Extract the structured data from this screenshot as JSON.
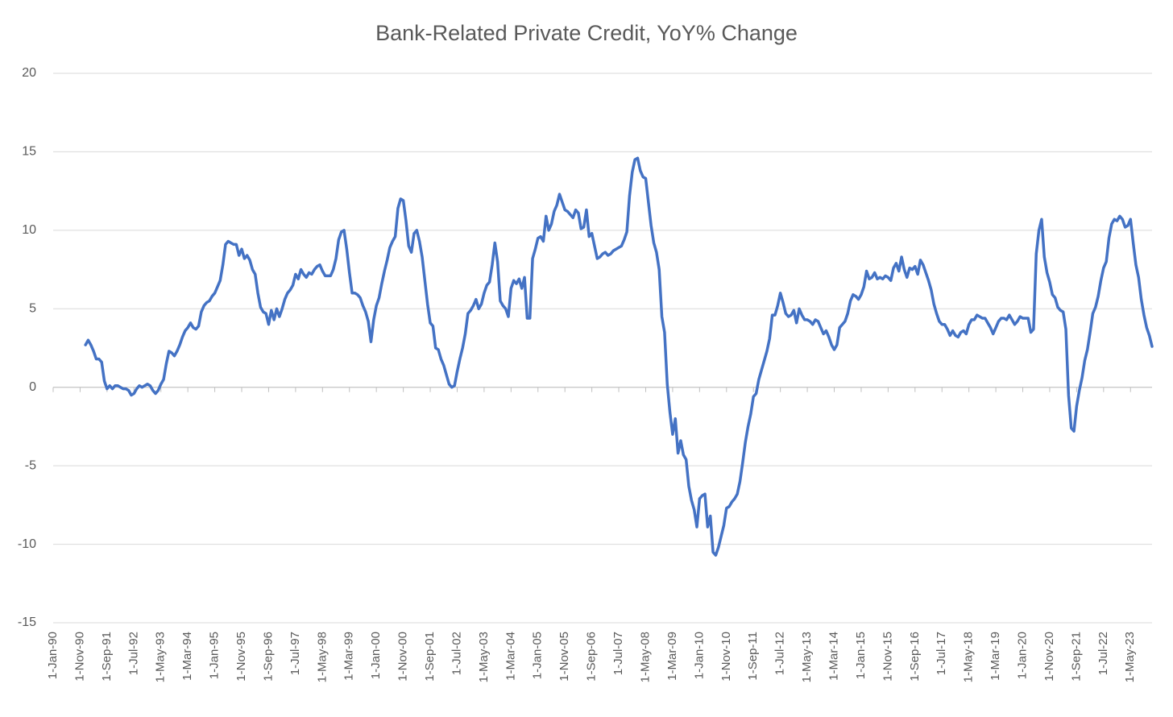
{
  "chart_data": {
    "type": "line",
    "title": "Bank-Related Private Credit, YoY% Change",
    "categories": [
      "1-Jan-90",
      null,
      null,
      null,
      null,
      null,
      null,
      null,
      null,
      null,
      "1-Nov-90",
      null,
      null,
      null,
      null,
      null,
      null,
      null,
      null,
      null,
      "1-Sep-91",
      null,
      null,
      null,
      null,
      null,
      null,
      null,
      null,
      null,
      "1-Jul-92",
      null,
      null,
      null,
      null,
      null,
      null,
      null,
      null,
      null,
      "1-May-93",
      null,
      null,
      null,
      null,
      null,
      null,
      null,
      null,
      null,
      "1-Mar-94",
      null,
      null,
      null,
      null,
      null,
      null,
      null,
      null,
      null,
      "1-Jan-95",
      null,
      null,
      null,
      null,
      null,
      null,
      null,
      null,
      null,
      "1-Nov-95",
      null,
      null,
      null,
      null,
      null,
      null,
      null,
      null,
      null,
      "1-Sep-96",
      null,
      null,
      null,
      null,
      null,
      null,
      null,
      null,
      null,
      "1-Jul-97",
      null,
      null,
      null,
      null,
      null,
      null,
      null,
      null,
      null,
      "1-May-98",
      null,
      null,
      null,
      null,
      null,
      null,
      null,
      null,
      null,
      "1-Mar-99",
      null,
      null,
      null,
      null,
      null,
      null,
      null,
      null,
      null,
      "1-Jan-00",
      null,
      null,
      null,
      null,
      null,
      null,
      null,
      null,
      null,
      "1-Nov-00",
      null,
      null,
      null,
      null,
      null,
      null,
      null,
      null,
      null,
      "1-Sep-01",
      null,
      null,
      null,
      null,
      null,
      null,
      null,
      null,
      null,
      "1-Jul-02",
      null,
      null,
      null,
      null,
      null,
      null,
      null,
      null,
      null,
      "1-May-03",
      null,
      null,
      null,
      null,
      null,
      null,
      null,
      null,
      null,
      "1-Mar-04",
      null,
      null,
      null,
      null,
      null,
      null,
      null,
      null,
      null,
      "1-Jan-05",
      null,
      null,
      null,
      null,
      null,
      null,
      null,
      null,
      null,
      "1-Nov-05",
      null,
      null,
      null,
      null,
      null,
      null,
      null,
      null,
      null,
      "1-Sep-06",
      null,
      null,
      null,
      null,
      null,
      null,
      null,
      null,
      null,
      "1-Jul-07",
      null,
      null,
      null,
      null,
      null,
      null,
      null,
      null,
      null,
      "1-May-08",
      null,
      null,
      null,
      null,
      null,
      null,
      null,
      null,
      null,
      "1-Mar-09",
      null,
      null,
      null,
      null,
      null,
      null,
      null,
      null,
      null,
      "1-Jan-10",
      null,
      null,
      null,
      null,
      null,
      null,
      null,
      null,
      null,
      "1-Nov-10",
      null,
      null,
      null,
      null,
      null,
      null,
      null,
      null,
      null,
      "1-Sep-11",
      null,
      null,
      null,
      null,
      null,
      null,
      null,
      null,
      null,
      "1-Jul-12",
      null,
      null,
      null,
      null,
      null,
      null,
      null,
      null,
      null,
      "1-May-13",
      null,
      null,
      null,
      null,
      null,
      null,
      null,
      null,
      null,
      "1-Mar-14",
      null,
      null,
      null,
      null,
      null,
      null,
      null,
      null,
      null,
      "1-Jan-15",
      null,
      null,
      null,
      null,
      null,
      null,
      null,
      null,
      null,
      "1-Nov-15",
      null,
      null,
      null,
      null,
      null,
      null,
      null,
      null,
      null,
      "1-Sep-16",
      null,
      null,
      null,
      null,
      null,
      null,
      null,
      null,
      null,
      "1-Jul-17",
      null,
      null,
      null,
      null,
      null,
      null,
      null,
      null,
      null,
      "1-May-18",
      null,
      null,
      null,
      null,
      null,
      null,
      null,
      null,
      null,
      "1-Mar-19",
      null,
      null,
      null,
      null,
      null,
      null,
      null,
      null,
      null,
      "1-Jan-20",
      null,
      null,
      null,
      null,
      null,
      null,
      null,
      null,
      null,
      "1-Nov-20",
      null,
      null,
      null,
      null,
      null,
      null,
      null,
      null,
      null,
      "1-Sep-21",
      null,
      null,
      null,
      null,
      null,
      null,
      null,
      null,
      null,
      "1-Jul-22",
      null,
      null,
      null,
      null,
      null,
      null,
      null,
      null,
      null,
      "1-May-23",
      null,
      null,
      null,
      null,
      null,
      null,
      null,
      null
    ],
    "series": [
      {
        "name": "Bank-Related Private Credit",
        "color": "#4472c4",
        "values": [
          null,
          null,
          null,
          null,
          null,
          null,
          null,
          null,
          null,
          null,
          null,
          null,
          2.7,
          3.0,
          2.7,
          2.3,
          1.8,
          1.8,
          1.6,
          0.4,
          -0.1,
          0.1,
          -0.1,
          0.1,
          0.1,
          0.0,
          -0.1,
          -0.1,
          -0.2,
          -0.5,
          -0.4,
          -0.1,
          0.1,
          0.0,
          0.1,
          0.2,
          0.1,
          -0.2,
          -0.4,
          -0.2,
          0.2,
          0.5,
          1.5,
          2.3,
          2.2,
          2.0,
          2.3,
          2.7,
          3.2,
          3.6,
          3.8,
          4.1,
          3.8,
          3.7,
          3.9,
          4.8,
          5.2,
          5.4,
          5.5,
          5.8,
          6.0,
          6.4,
          6.8,
          7.8,
          9.1,
          9.3,
          9.2,
          9.1,
          9.1,
          8.4,
          8.8,
          8.2,
          8.4,
          8.1,
          7.5,
          7.2,
          6.0,
          5.1,
          4.8,
          4.7,
          4.0,
          4.9,
          4.3,
          5.0,
          4.5,
          5.0,
          5.6,
          6.0,
          6.2,
          6.5,
          7.2,
          6.9,
          7.5,
          7.2,
          7.0,
          7.3,
          7.2,
          7.5,
          7.7,
          7.8,
          7.4,
          7.1,
          7.1,
          7.1,
          7.5,
          8.2,
          9.4,
          9.9,
          10.0,
          8.8,
          7.3,
          6.0,
          6.0,
          5.9,
          5.7,
          5.2,
          4.8,
          4.2,
          2.9,
          4.3,
          5.2,
          5.7,
          6.6,
          7.4,
          8.1,
          8.9,
          9.3,
          9.6,
          11.4,
          12.0,
          11.9,
          10.6,
          9.0,
          8.6,
          9.8,
          10.0,
          9.3,
          8.3,
          6.8,
          5.3,
          4.1,
          3.9,
          2.5,
          2.4,
          1.8,
          1.4,
          0.8,
          0.2,
          0.0,
          0.1,
          1.0,
          1.8,
          2.5,
          3.4,
          4.7,
          4.9,
          5.2,
          5.6,
          5.0,
          5.3,
          6.0,
          6.5,
          6.7,
          7.8,
          9.2,
          8.0,
          5.5,
          5.2,
          5.0,
          4.5,
          6.3,
          6.8,
          6.6,
          6.9,
          6.3,
          7.0,
          4.4,
          4.4,
          8.2,
          8.8,
          9.5,
          9.6,
          9.3,
          10.9,
          10.0,
          10.4,
          11.2,
          11.6,
          12.3,
          11.8,
          11.3,
          11.2,
          11.0,
          10.8,
          11.3,
          11.1,
          10.1,
          10.2,
          11.3,
          9.6,
          9.8,
          9.0,
          8.2,
          8.3,
          8.5,
          8.6,
          8.4,
          8.5,
          8.7,
          8.8,
          8.9,
          9.0,
          9.4,
          9.9,
          12.2,
          13.7,
          14.5,
          14.6,
          13.8,
          13.4,
          13.3,
          11.8,
          10.3,
          9.2,
          8.6,
          7.5,
          4.5,
          3.5,
          0.2,
          -1.6,
          -3.0,
          -2.0,
          -4.2,
          -3.4,
          -4.3,
          -4.6,
          -6.3,
          -7.2,
          -7.8,
          -8.9,
          -7.1,
          -6.9,
          -6.8,
          -8.9,
          -8.2,
          -10.5,
          -10.7,
          -10.2,
          -9.5,
          -8.8,
          -7.7,
          -7.6,
          -7.3,
          -7.1,
          -6.8,
          -6.0,
          -4.8,
          -3.5,
          -2.5,
          -1.7,
          -0.6,
          -0.4,
          0.5,
          1.1,
          1.7,
          2.3,
          3.1,
          4.6,
          4.6,
          5.2,
          6.0,
          5.4,
          4.7,
          4.5,
          4.6,
          4.9,
          4.1,
          5.0,
          4.6,
          4.3,
          4.3,
          4.2,
          4.0,
          4.3,
          4.2,
          3.8,
          3.4,
          3.6,
          3.2,
          2.7,
          2.4,
          2.7,
          3.8,
          4.0,
          4.2,
          4.7,
          5.5,
          5.9,
          5.8,
          5.6,
          5.9,
          6.4,
          7.4,
          6.9,
          7.0,
          7.3,
          6.9,
          7.0,
          6.9,
          7.1,
          7.0,
          6.8,
          7.6,
          7.9,
          7.4,
          8.3,
          7.5,
          7.0,
          7.6,
          7.5,
          7.7,
          7.2,
          8.1,
          7.8,
          7.3,
          6.8,
          6.2,
          5.3,
          4.7,
          4.2,
          4.0,
          4.0,
          3.7,
          3.3,
          3.6,
          3.3,
          3.2,
          3.5,
          3.6,
          3.4,
          4.0,
          4.3,
          4.3,
          4.6,
          4.5,
          4.4,
          4.4,
          4.1,
          3.8,
          3.4,
          3.8,
          4.2,
          4.4,
          4.4,
          4.3,
          4.6,
          4.3,
          4.0,
          4.2,
          4.5,
          4.4,
          4.4,
          4.4,
          3.5,
          3.7,
          8.5,
          10.0,
          10.7,
          8.3,
          7.3,
          6.7,
          5.9,
          5.7,
          5.1,
          4.9,
          4.8,
          3.7,
          -0.5,
          -2.6,
          -2.8,
          -1.2,
          -0.2,
          0.6,
          1.7,
          2.4,
          3.5,
          4.7,
          5.1,
          5.8,
          6.8,
          7.6,
          8.0,
          9.5,
          10.4,
          10.7,
          10.6,
          10.9,
          10.7,
          10.2,
          10.3,
          10.7,
          9.2,
          7.8,
          7.0,
          5.6,
          4.6,
          3.8,
          3.3,
          2.6
        ]
      }
    ],
    "ylim": [
      -15,
      20
    ],
    "yticks": [
      -15,
      -10,
      -5,
      0,
      5,
      10,
      15,
      20
    ],
    "grid": true
  }
}
